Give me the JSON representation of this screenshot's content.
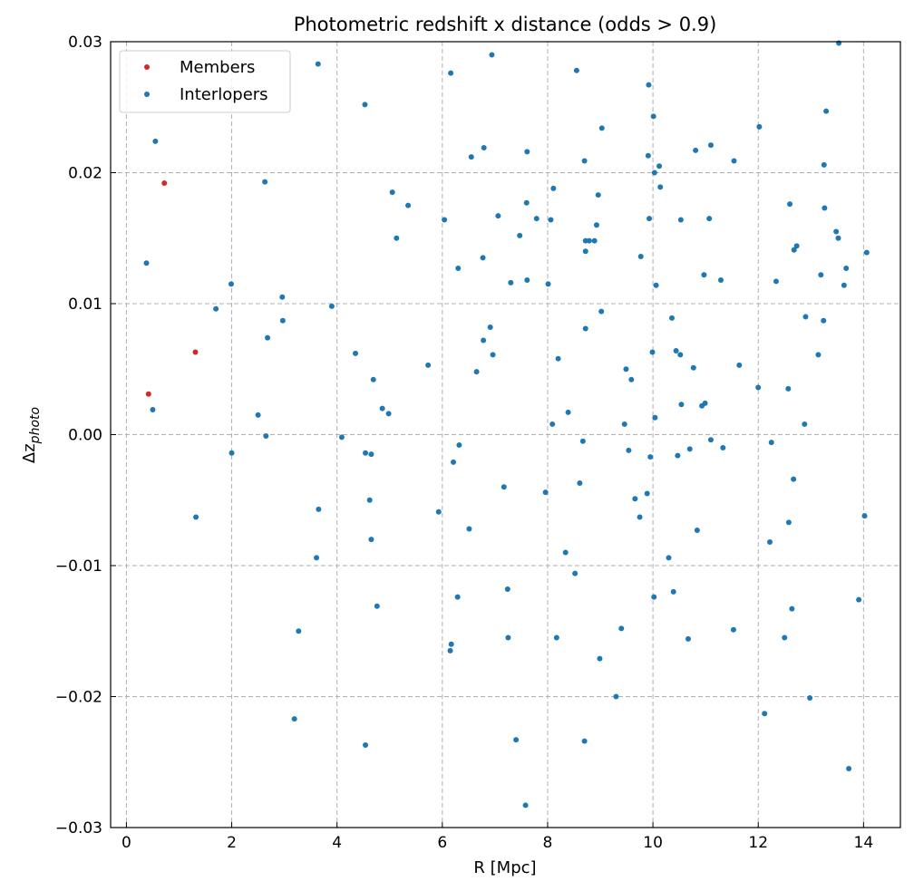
{
  "chart_data": {
    "type": "scatter",
    "title": "Photometric redshift x distance (odds > 0.9)",
    "xlabel": "R [Mpc]",
    "ylabel_base": "Δz",
    "ylabel_sub": "photo",
    "xlim": [
      -0.3,
      14.7
    ],
    "ylim": [
      -0.03,
      0.03
    ],
    "xticks": [
      0,
      2,
      4,
      6,
      8,
      10,
      12,
      14
    ],
    "xtick_labels": [
      "0",
      "2",
      "4",
      "6",
      "8",
      "10",
      "12",
      "14"
    ],
    "yticks": [
      -0.03,
      -0.02,
      -0.01,
      0.0,
      0.01,
      0.02,
      0.03
    ],
    "ytick_labels": [
      "−0.03",
      "−0.02",
      "−0.01",
      "0.00",
      "0.01",
      "0.02",
      "0.03"
    ],
    "grid": true,
    "legend_position": "top-left",
    "series": [
      {
        "name": "Members",
        "color": "#d62728",
        "points": [
          [
            0.72,
            0.0192
          ],
          [
            1.31,
            0.0063
          ],
          [
            0.42,
            0.0031
          ]
        ]
      },
      {
        "name": "Interlopers",
        "color": "#1f77b4",
        "points": [
          [
            0.55,
            0.0224
          ],
          [
            0.38,
            0.0131
          ],
          [
            0.5,
            0.0019
          ],
          [
            1.32,
            -0.0063
          ],
          [
            1.7,
            0.0096
          ],
          [
            1.99,
            0.0115
          ],
          [
            2.0,
            -0.0014
          ],
          [
            2.5,
            0.0015
          ],
          [
            2.63,
            0.0193
          ],
          [
            2.65,
            -0.0001
          ],
          [
            2.68,
            0.0074
          ],
          [
            2.96,
            0.0105
          ],
          [
            2.97,
            0.0087
          ],
          [
            3.19,
            -0.0217
          ],
          [
            3.27,
            -0.015
          ],
          [
            3.61,
            -0.0094
          ],
          [
            3.64,
            0.0283
          ],
          [
            3.65,
            -0.0057
          ],
          [
            3.9,
            0.0098
          ],
          [
            4.09,
            -0.0002
          ],
          [
            4.35,
            0.0062
          ],
          [
            4.53,
            0.0252
          ],
          [
            4.54,
            -0.0014
          ],
          [
            4.54,
            -0.0237
          ],
          [
            4.62,
            -0.005
          ],
          [
            4.65,
            -0.0015
          ],
          [
            4.65,
            -0.008
          ],
          [
            4.69,
            0.0042
          ],
          [
            4.76,
            -0.0131
          ],
          [
            4.86,
            0.002
          ],
          [
            4.98,
            0.0016
          ],
          [
            5.05,
            0.0185
          ],
          [
            5.13,
            0.015
          ],
          [
            5.35,
            0.0175
          ],
          [
            5.73,
            0.0053
          ],
          [
            5.93,
            -0.0059
          ],
          [
            6.04,
            0.0164
          ],
          [
            6.15,
            -0.0165
          ],
          [
            6.16,
            0.0276
          ],
          [
            6.17,
            -0.016
          ],
          [
            6.21,
            -0.0021
          ],
          [
            6.29,
            -0.0124
          ],
          [
            6.3,
            0.0127
          ],
          [
            6.32,
            -0.0008
          ],
          [
            6.51,
            -0.0072
          ],
          [
            6.55,
            0.0212
          ],
          [
            6.65,
            0.0048
          ],
          [
            6.77,
            0.0135
          ],
          [
            6.78,
            0.0072
          ],
          [
            6.79,
            0.0219
          ],
          [
            6.91,
            0.0082
          ],
          [
            6.94,
            0.029
          ],
          [
            6.96,
            0.0061
          ],
          [
            7.06,
            0.0167
          ],
          [
            7.17,
            -0.004
          ],
          [
            7.24,
            -0.0118
          ],
          [
            7.25,
            -0.0155
          ],
          [
            7.3,
            0.0116
          ],
          [
            7.4,
            -0.0233
          ],
          [
            7.47,
            0.0152
          ],
          [
            7.58,
            -0.0283
          ],
          [
            7.6,
            0.0177
          ],
          [
            7.61,
            0.0118
          ],
          [
            7.61,
            0.0216
          ],
          [
            7.79,
            0.0165
          ],
          [
            7.96,
            -0.0044
          ],
          [
            8.01,
            0.0115
          ],
          [
            8.06,
            0.0164
          ],
          [
            8.09,
            0.0008
          ],
          [
            8.11,
            0.0188
          ],
          [
            8.17,
            -0.0155
          ],
          [
            8.2,
            0.0058
          ],
          [
            8.34,
            -0.009
          ],
          [
            8.39,
            0.0017
          ],
          [
            8.52,
            -0.0106
          ],
          [
            8.55,
            0.0278
          ],
          [
            8.61,
            -0.0037
          ],
          [
            8.67,
            -0.0005
          ],
          [
            8.7,
            0.0209
          ],
          [
            8.7,
            -0.0234
          ],
          [
            8.72,
            0.014
          ],
          [
            8.72,
            0.0081
          ],
          [
            8.72,
            0.0148
          ],
          [
            8.79,
            0.0148
          ],
          [
            8.89,
            0.0148
          ],
          [
            8.93,
            0.016
          ],
          [
            8.96,
            0.0183
          ],
          [
            8.99,
            -0.0171
          ],
          [
            9.02,
            0.0094
          ],
          [
            9.03,
            0.0234
          ],
          [
            9.3,
            -0.02
          ],
          [
            9.4,
            -0.0148
          ],
          [
            9.46,
            0.0008
          ],
          [
            9.49,
            0.005
          ],
          [
            9.54,
            -0.0012
          ],
          [
            9.59,
            0.0042
          ],
          [
            9.66,
            -0.0049
          ],
          [
            9.75,
            -0.0063
          ],
          [
            9.77,
            0.0136
          ],
          [
            9.89,
            -0.0045
          ],
          [
            9.91,
            0.0213
          ],
          [
            9.92,
            0.0267
          ],
          [
            9.93,
            0.0165
          ],
          [
            9.95,
            -0.0017
          ],
          [
            9.99,
            0.0063
          ],
          [
            10.01,
            0.0243
          ],
          [
            10.02,
            -0.0124
          ],
          [
            10.03,
            0.02
          ],
          [
            10.04,
            0.0013
          ],
          [
            10.06,
            0.0114
          ],
          [
            10.12,
            0.0205
          ],
          [
            10.14,
            0.0189
          ],
          [
            10.3,
            -0.0094
          ],
          [
            10.36,
            0.0089
          ],
          [
            10.39,
            -0.012
          ],
          [
            10.44,
            0.0064
          ],
          [
            10.47,
            -0.0016
          ],
          [
            10.52,
            0.0061
          ],
          [
            10.53,
            0.0164
          ],
          [
            10.54,
            0.0023
          ],
          [
            10.67,
            -0.0156
          ],
          [
            10.7,
            -0.0011
          ],
          [
            10.77,
            0.0051
          ],
          [
            10.81,
            0.0217
          ],
          [
            10.84,
            -0.0073
          ],
          [
            10.93,
            0.0022
          ],
          [
            10.97,
            0.0122
          ],
          [
            10.99,
            0.0024
          ],
          [
            11.07,
            0.0165
          ],
          [
            11.1,
            -0.0004
          ],
          [
            11.1,
            0.0221
          ],
          [
            11.29,
            0.0118
          ],
          [
            11.33,
            -0.001
          ],
          [
            11.53,
            -0.0149
          ],
          [
            11.54,
            0.0209
          ],
          [
            11.64,
            0.0053
          ],
          [
            12.0,
            0.0036
          ],
          [
            12.02,
            0.0235
          ],
          [
            12.12,
            -0.0213
          ],
          [
            12.22,
            -0.0082
          ],
          [
            12.25,
            -0.0006
          ],
          [
            12.34,
            0.0117
          ],
          [
            12.5,
            -0.0155
          ],
          [
            12.57,
            0.0035
          ],
          [
            12.58,
            -0.0067
          ],
          [
            12.6,
            0.0176
          ],
          [
            12.64,
            -0.0133
          ],
          [
            12.67,
            -0.0034
          ],
          [
            12.68,
            0.0141
          ],
          [
            12.73,
            0.0144
          ],
          [
            12.88,
            0.0008
          ],
          [
            12.9,
            0.009
          ],
          [
            12.98,
            -0.0201
          ],
          [
            13.14,
            0.0061
          ],
          [
            13.19,
            0.0122
          ],
          [
            13.24,
            0.0087
          ],
          [
            13.25,
            0.0206
          ],
          [
            13.26,
            0.0173
          ],
          [
            13.29,
            0.0247
          ],
          [
            13.48,
            0.0155
          ],
          [
            13.52,
            0.015
          ],
          [
            13.53,
            0.0299
          ],
          [
            13.63,
            0.0114
          ],
          [
            13.67,
            0.0127
          ],
          [
            13.72,
            -0.0255
          ],
          [
            13.91,
            -0.0126
          ],
          [
            14.02,
            -0.0062
          ],
          [
            14.06,
            0.0139
          ]
        ]
      }
    ]
  }
}
